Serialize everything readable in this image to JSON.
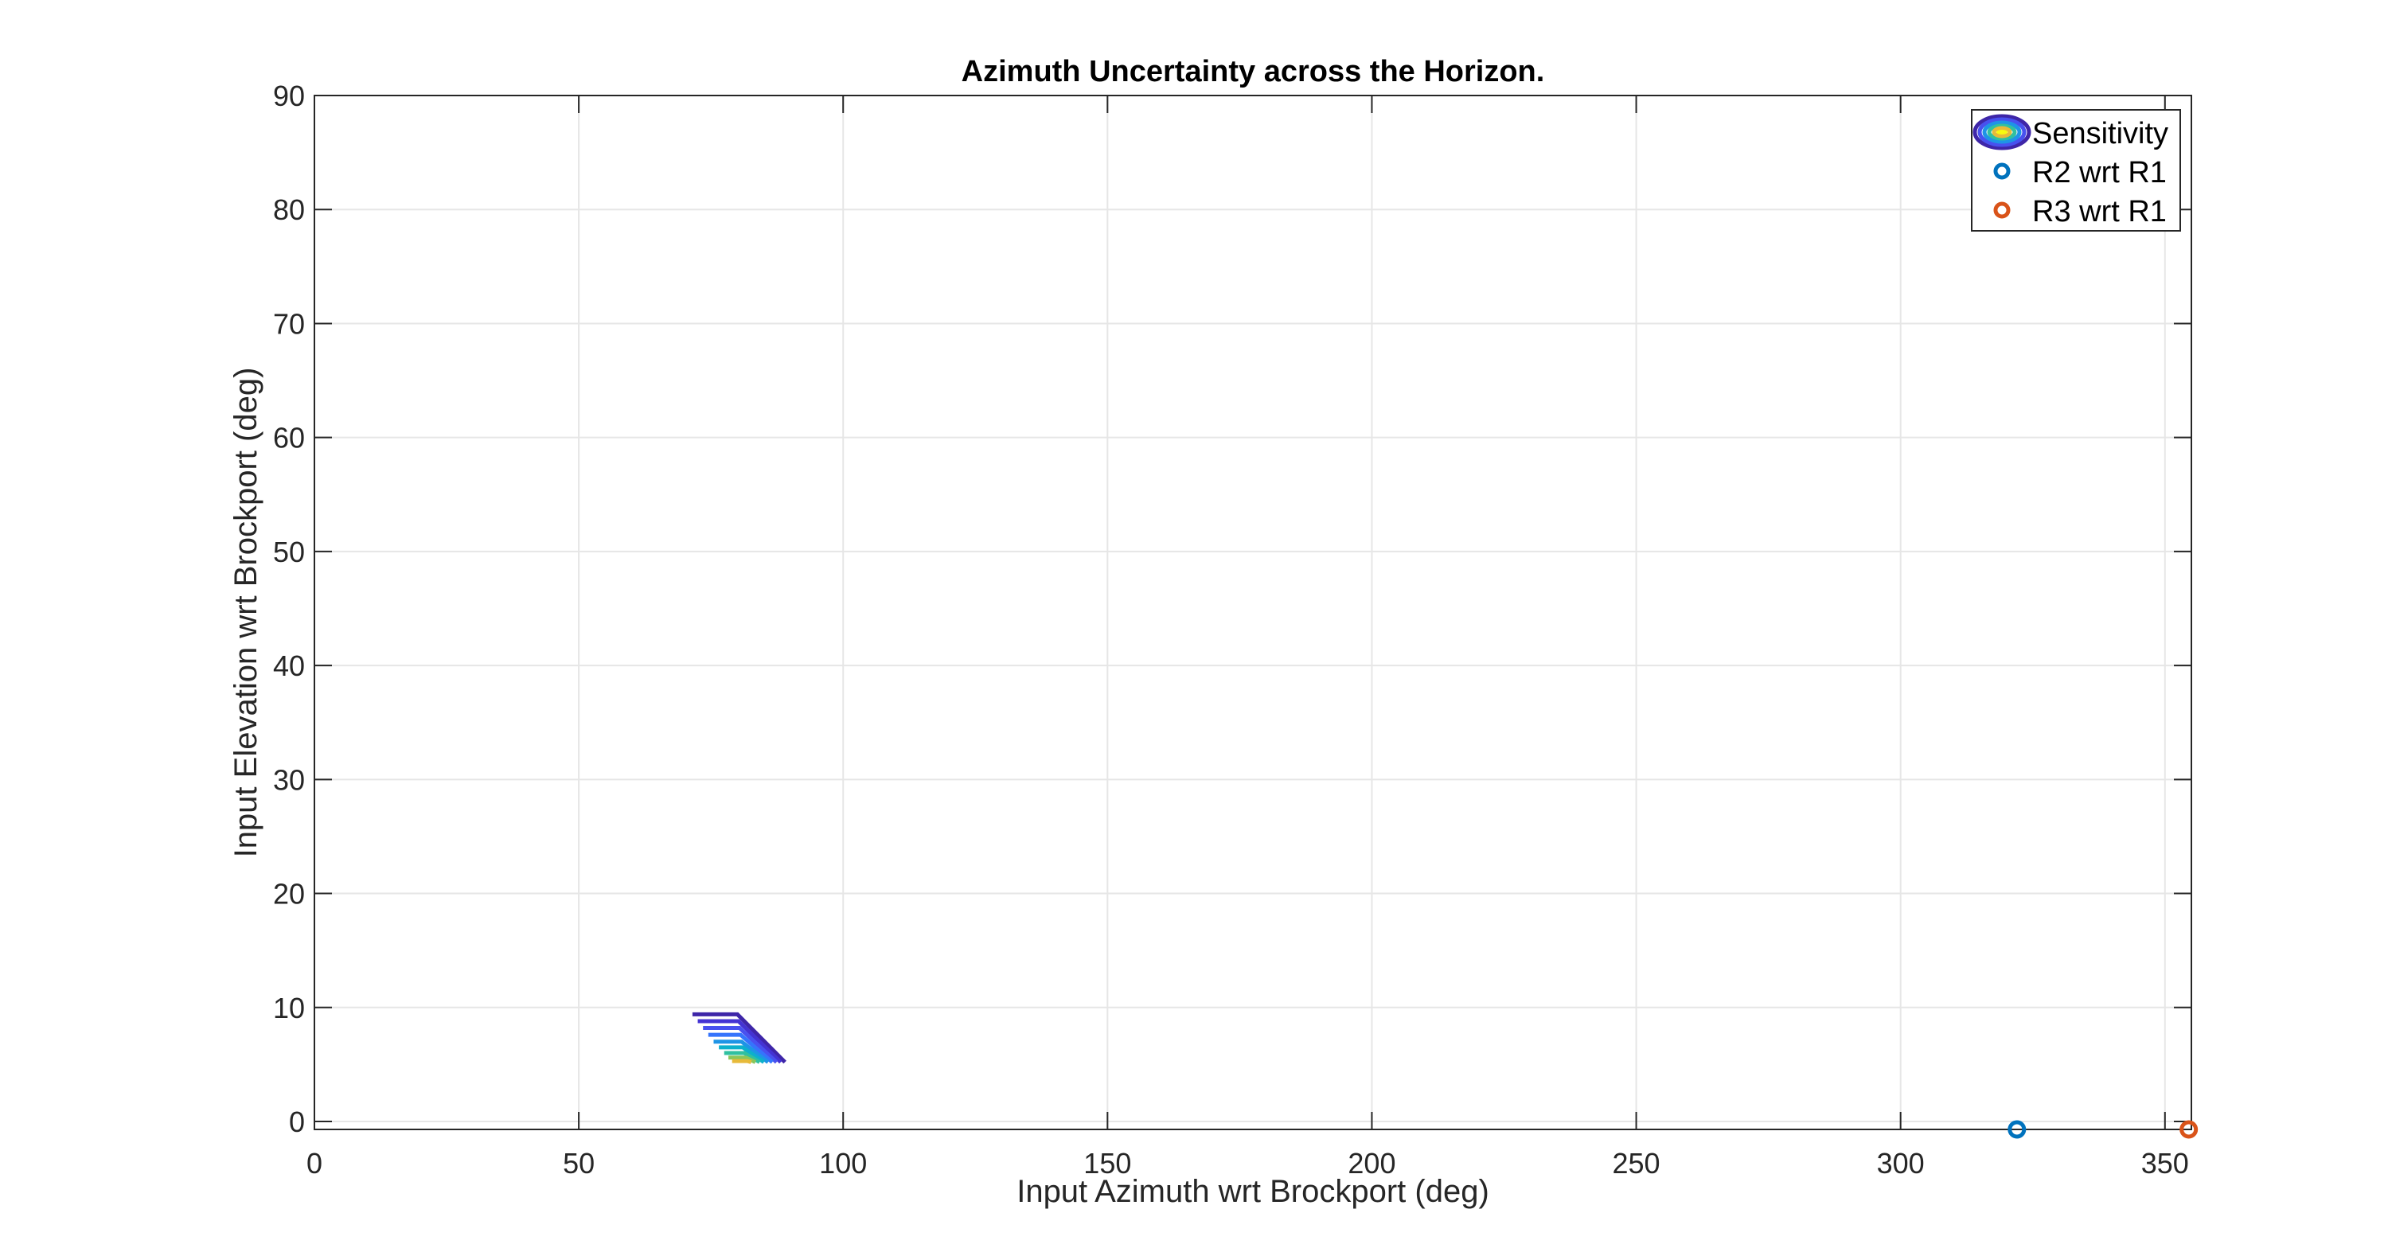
{
  "chart_data": {
    "type": "scatter",
    "title": "Azimuth Uncertainty across the Horizon.",
    "xlabel": "Input Azimuth wrt Brockport (deg)",
    "ylabel": "Input Elevation wrt Brockport (deg)",
    "xlim": [
      0,
      355
    ],
    "ylim": [
      -0.7,
      90
    ],
    "xticks": [
      0,
      50,
      100,
      150,
      200,
      250,
      300,
      350
    ],
    "yticks": [
      0,
      10,
      20,
      30,
      40,
      50,
      60,
      70,
      80,
      90
    ],
    "grid": true,
    "legend_position": "top-right",
    "legend": [
      "Sensitivity",
      "R2 wrt R1",
      "R3 wrt R1"
    ],
    "colors": {
      "r2": "#0072BD",
      "r3": "#D95319",
      "axes": "#262626",
      "grid": "#e6e6e6"
    },
    "contour": {
      "name": "Sensitivity",
      "levels": [
        {
          "color": "#3e26a8",
          "y": 9.4,
          "x_start": 71.5,
          "x_corner": 80.0,
          "x_end": 89.0,
          "y_end": 5.2
        },
        {
          "color": "#4433d3",
          "y": 8.8,
          "x_start": 72.5,
          "x_corner": 80.2,
          "x_end": 88.2,
          "y_end": 5.2
        },
        {
          "color": "#4851ef",
          "y": 8.2,
          "x_start": 73.5,
          "x_corner": 80.4,
          "x_end": 87.4,
          "y_end": 5.2
        },
        {
          "color": "#3574fc",
          "y": 7.6,
          "x_start": 74.5,
          "x_corner": 80.6,
          "x_end": 86.6,
          "y_end": 5.2
        },
        {
          "color": "#1e94e6",
          "y": 7.0,
          "x_start": 75.5,
          "x_corner": 80.8,
          "x_end": 85.8,
          "y_end": 5.2
        },
        {
          "color": "#0db0cc",
          "y": 6.5,
          "x_start": 76.5,
          "x_corner": 81.0,
          "x_end": 85.0,
          "y_end": 5.2
        },
        {
          "color": "#30c0a0",
          "y": 6.0,
          "x_start": 77.5,
          "x_corner": 81.3,
          "x_end": 84.2,
          "y_end": 5.2
        },
        {
          "color": "#8ac65a",
          "y": 5.6,
          "x_start": 78.3,
          "x_corner": 81.6,
          "x_end": 83.4,
          "y_end": 5.2
        },
        {
          "color": "#e7ba3a",
          "y": 5.3,
          "x_start": 79.0,
          "x_corner": 81.9,
          "x_end": 82.6,
          "y_end": 5.2
        }
      ]
    },
    "series": [
      {
        "name": "R2 wrt R1",
        "x": [
          322
        ],
        "y": [
          -0.7
        ]
      },
      {
        "name": "R3 wrt R1",
        "x": [
          354.5
        ],
        "y": [
          -0.7
        ]
      }
    ]
  }
}
